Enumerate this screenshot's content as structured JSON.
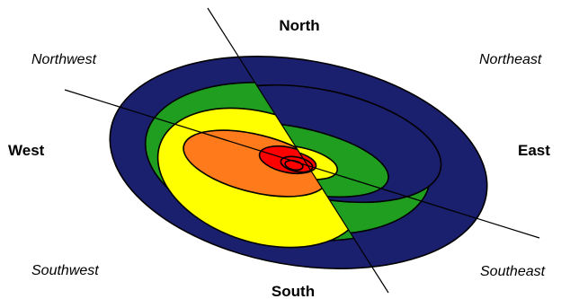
{
  "labels": {
    "north": "North",
    "northeast": "Northeast",
    "east": "East",
    "southeast": "Southeast",
    "south": "South",
    "southwest": "Southwest",
    "west": "West",
    "northwest": "Northwest"
  },
  "colors": {
    "navy": "#1a1f6e",
    "green": "#1f9e1f",
    "yellow": "#ffff00",
    "orange": "#ff7a1a",
    "red": "#ff0000",
    "outline": "#000000"
  }
}
